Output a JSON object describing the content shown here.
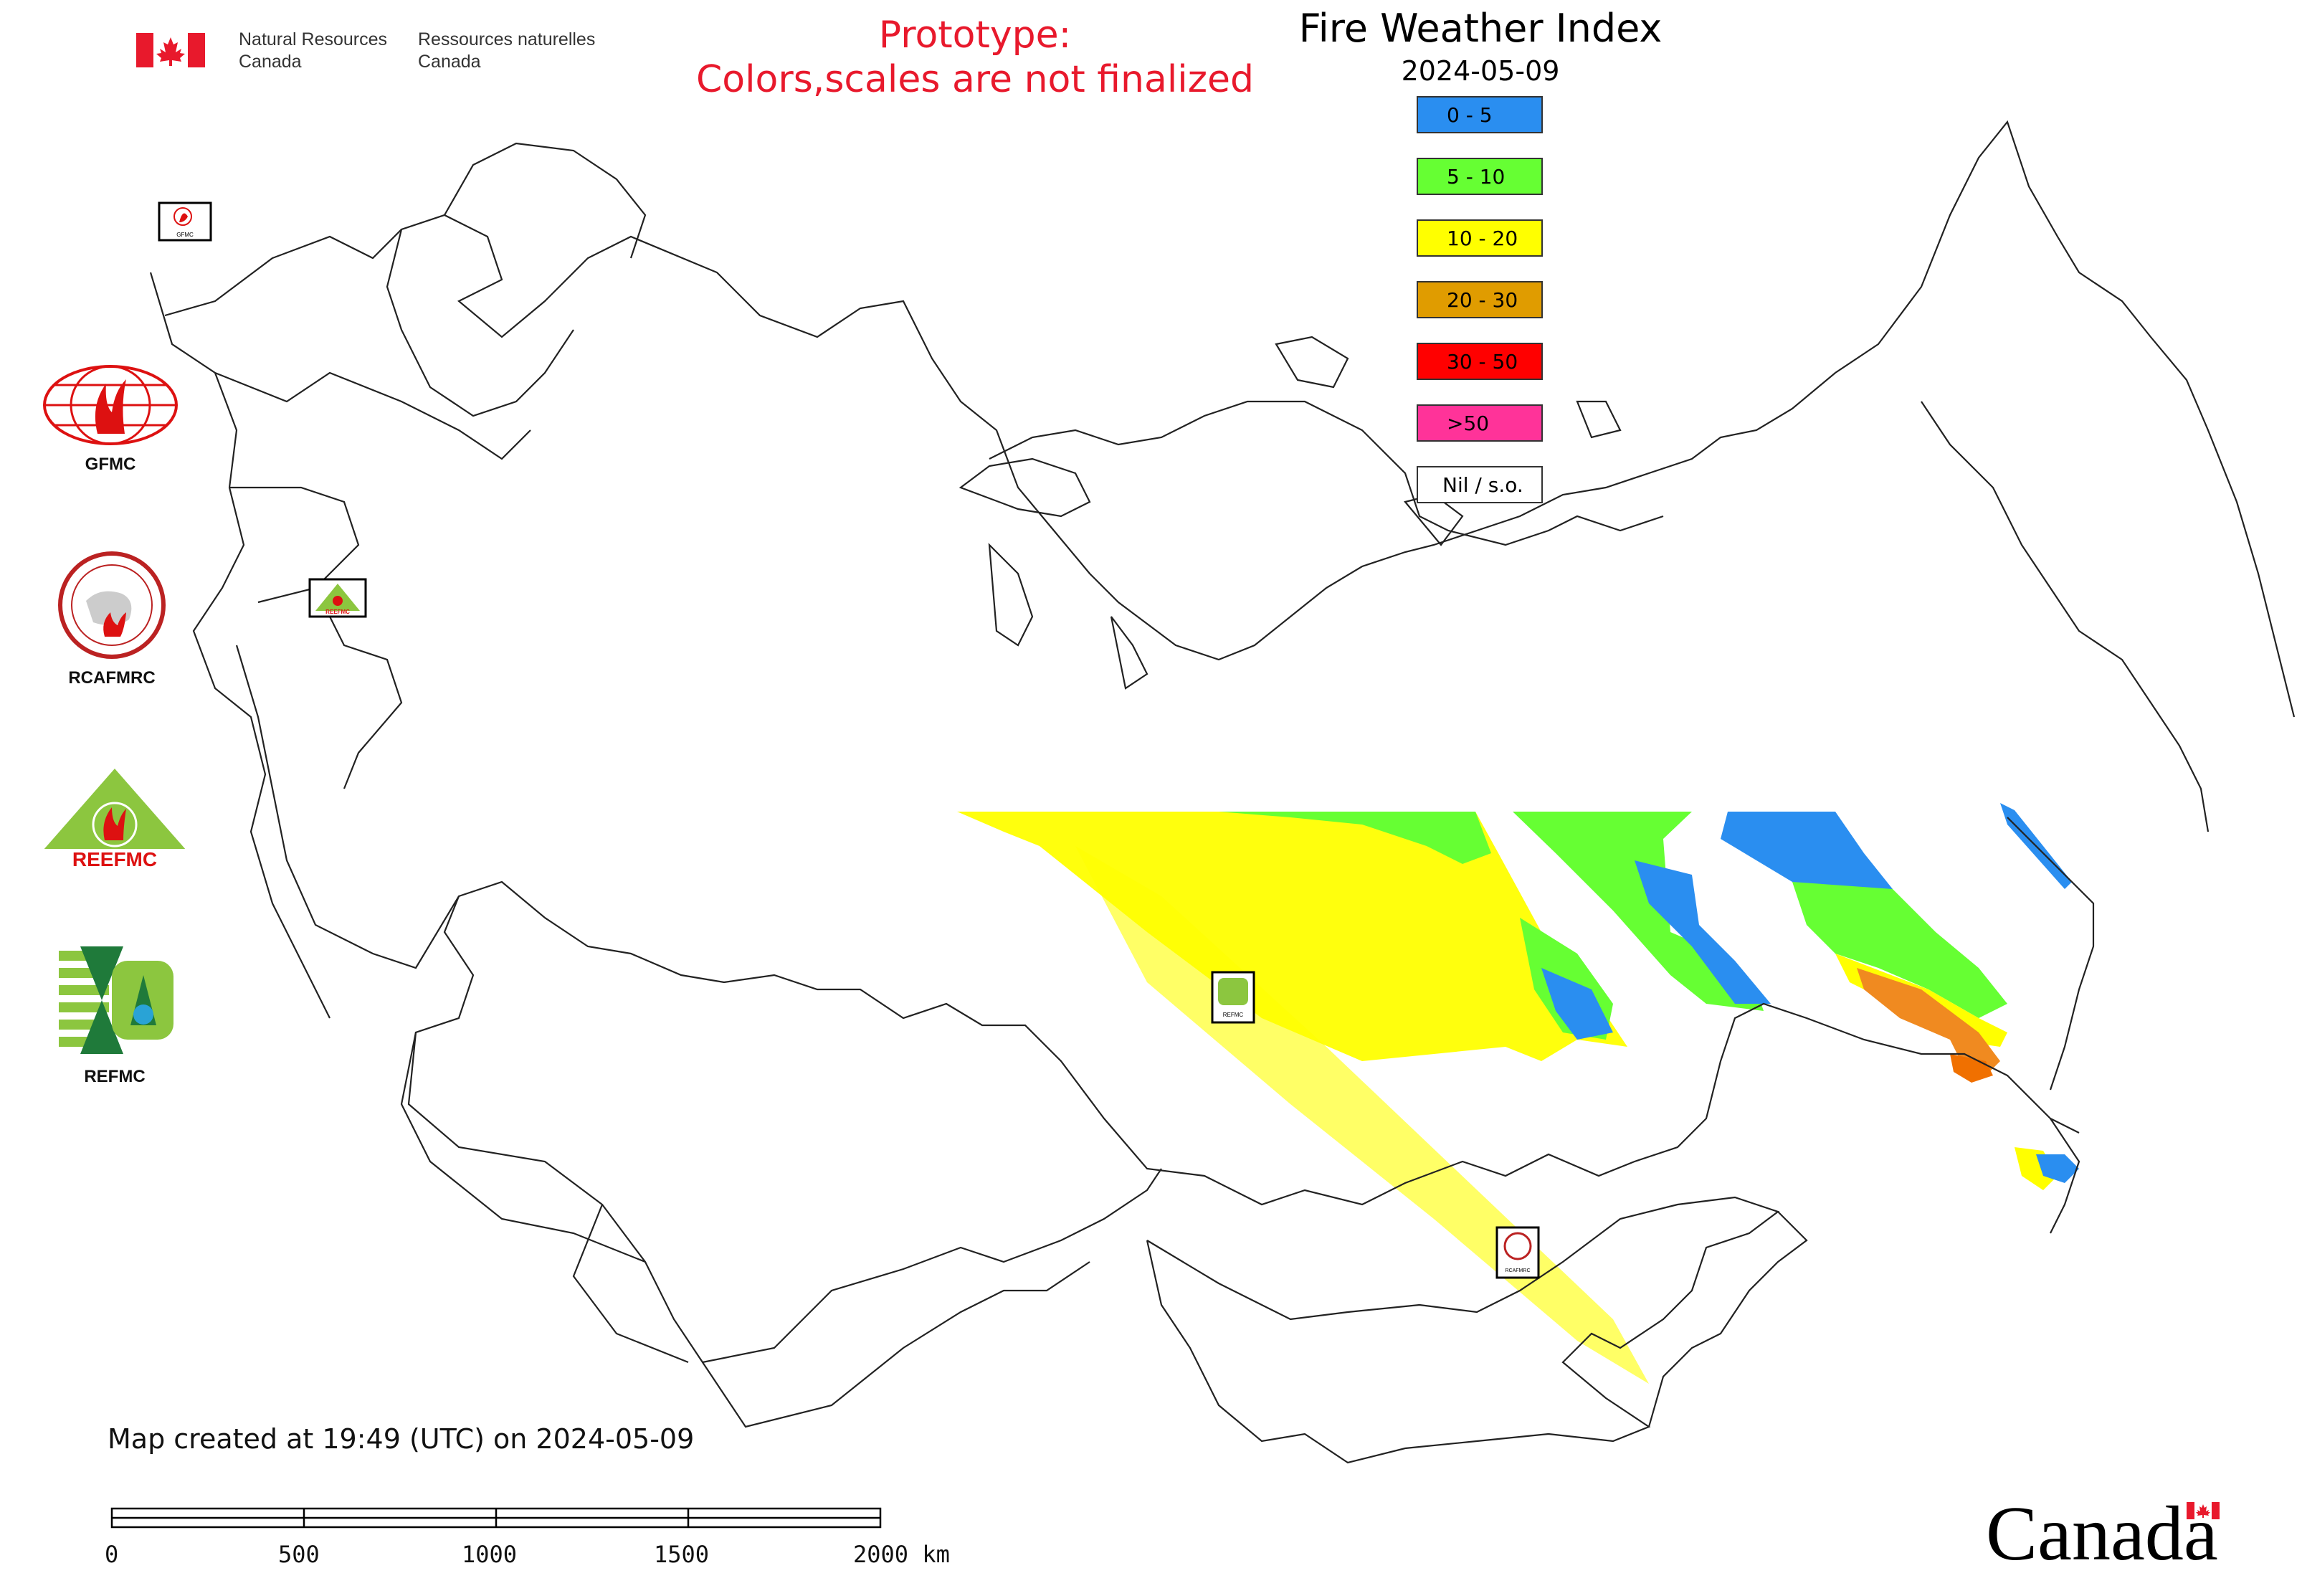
{
  "header": {
    "department_en": [
      "Natural Resources",
      "Canada"
    ],
    "department_fr": [
      "Ressources naturelles",
      "Canada"
    ],
    "prototype_notice": [
      "Prototype:",
      "Colors,scales are not finalized"
    ]
  },
  "map": {
    "title": "Fire Weather Index",
    "date": "2024-05-09",
    "legend": [
      {
        "label": "0 - 5",
        "color": "#2a8ef0"
      },
      {
        "label": "5 - 10",
        "color": "#66ff33"
      },
      {
        "label": "10 - 20",
        "color": "#ffff00"
      },
      {
        "label": "20 - 30",
        "color": "#e09c00"
      },
      {
        "label": "30 - 50",
        "color": "#ff0000"
      },
      {
        "label": ">50",
        "color": "#ff3399"
      },
      {
        "label": "Nil / s.o.",
        "color": "#ffffff"
      }
    ],
    "map_logos": [
      "GFMC",
      "REEFMC",
      "REFMC",
      "RCAFMRC"
    ]
  },
  "sidebar": {
    "logos": [
      {
        "label": "GFMC",
        "icon": "gfmc-logo-icon"
      },
      {
        "label": "RCAFMRC",
        "icon": "rcafmrc-logo-icon"
      },
      {
        "label": "REEFMC",
        "icon": "reefmc-logo-icon"
      },
      {
        "label": "REFMC",
        "icon": "refmc-logo-icon"
      }
    ]
  },
  "footer": {
    "created_note": "Map created at 19:49 (UTC) on 2024-05-09",
    "scale_labels": [
      "0",
      "500",
      "1000",
      "1500",
      "2000 km"
    ],
    "wordmark": "Canada"
  }
}
